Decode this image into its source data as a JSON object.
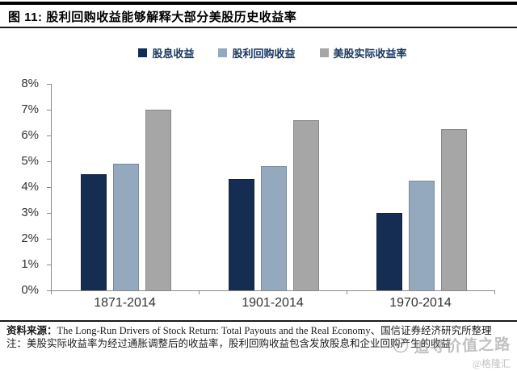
{
  "header": {
    "figure_label": "图 11:",
    "title": "股利回购收益能够解释大部分美股历史收益率"
  },
  "chart_data": {
    "type": "bar",
    "categories": [
      "1871-2014",
      "1901-2014",
      "1970-2014"
    ],
    "series": [
      {
        "name": "股息收益",
        "color": "#152C53",
        "values": [
          4.5,
          4.3,
          3.0
        ]
      },
      {
        "name": "股利回购收益",
        "color": "#95A9BE",
        "values": [
          4.9,
          4.8,
          4.25
        ]
      },
      {
        "name": "美股实际收益率",
        "color": "#A6A6A6",
        "values": [
          7.0,
          6.6,
          6.25
        ]
      }
    ],
    "ylim": [
      0,
      8
    ],
    "ytick_step": 1,
    "ytick_labels": [
      "0%",
      "1%",
      "2%",
      "3%",
      "4%",
      "5%",
      "6%",
      "7%",
      "8%"
    ],
    "grid": false,
    "legend_position": "top",
    "axis_color": "#898989"
  },
  "notes": {
    "source_label": "资料来源：",
    "source_text": "The Long-Run Drivers of Stock Return: Total Payouts and the Real Economy、国信证券经济研究所整理",
    "note_text": "注：美股实际收益率为经过通胀调整后的收益率，股利回购收益包含发放股息和企业回购产生的收益"
  },
  "watermark": {
    "text": "追寻价值之路",
    "handle": "@格隆汇"
  },
  "colors": {
    "series_dividend": "#152C53",
    "series_buyback": "#95A9BE",
    "series_real_return": "#A6A6A6",
    "legend_text": "#17375E",
    "rule_black": "#000000",
    "axis_gray": "#898989"
  }
}
